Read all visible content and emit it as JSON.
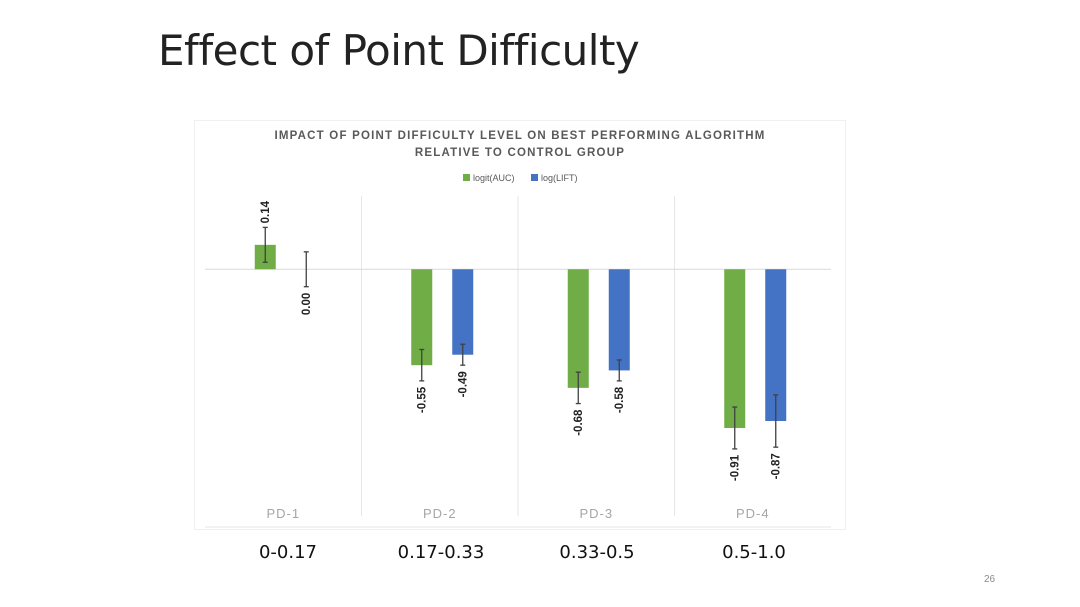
{
  "slide": {
    "title": "Effect of Point Difficulty",
    "page_number": "26"
  },
  "ranges": [
    "0-0.17",
    "0.17-0.33",
    "0.33-0.5",
    "0.5-1.0"
  ],
  "colors": {
    "auc": "#70ad47",
    "lift": "#4472c4",
    "gridline": "#e6e6e6",
    "axis": "#d9d9d9"
  },
  "chart_data": {
    "type": "bar",
    "title": "IMPACT OF POINT DIFFICULTY LEVEL ON BEST PERFORMING ALGORITHM RELATIVE TO CONTROL GROUP",
    "title_lines": [
      "IMPACT OF POINT DIFFICULTY LEVEL ON BEST PERFORMING ALGORITHM",
      "RELATIVE TO CONTROL GROUP"
    ],
    "categories": [
      "PD-1",
      "PD-2",
      "PD-3",
      "PD-4"
    ],
    "series": [
      {
        "name": "logit(AUC)",
        "color": "#70ad47",
        "values": [
          0.14,
          -0.55,
          -0.68,
          -0.91
        ],
        "labels": [
          "0.14",
          "-0.55",
          "-0.68",
          "-0.91"
        ],
        "error": [
          0.1,
          0.09,
          0.09,
          0.12
        ]
      },
      {
        "name": "log(LIFT)",
        "color": "#4472c4",
        "values": [
          0.0,
          -0.49,
          -0.58,
          -0.87
        ],
        "labels": [
          "0.00",
          "-0.49",
          "-0.58",
          "-0.87"
        ],
        "error": [
          0.1,
          0.06,
          0.06,
          0.15
        ]
      }
    ],
    "ylim": [
      -1.3,
      0.42
    ],
    "error_bars": true,
    "legend": "top-center",
    "grid": false
  }
}
